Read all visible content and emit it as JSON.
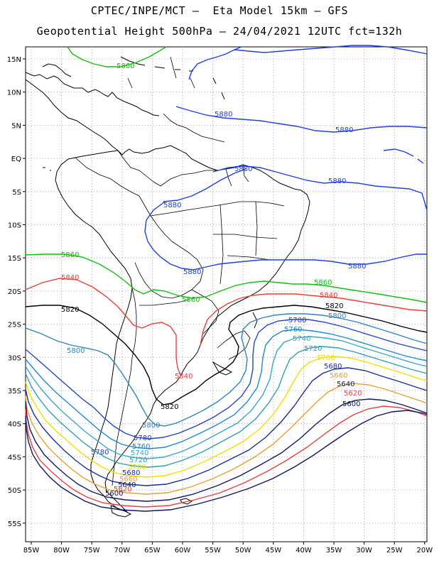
{
  "title_line1": "CPTEC/INPE/MCT –  Eta Model 15km – GFS",
  "title_line2": "Geopotential Height 500hPa – 24/04/2021 12UTC fct=132h",
  "lat_labels": [
    "15N",
    "10N",
    "5N",
    "EQ",
    "5S",
    "10S",
    "15S",
    "20S",
    "25S",
    "30S",
    "35S",
    "40S",
    "45S",
    "50S",
    "55S"
  ],
  "lon_labels": [
    "85W",
    "80W",
    "75W",
    "70W",
    "65W",
    "60W",
    "55W",
    "50W",
    "45W",
    "40W",
    "35W",
    "30W",
    "25W",
    "20W"
  ],
  "colors": {
    "5880": "#1f3fe0",
    "5860": "#10c010",
    "5840": "#e8403a",
    "5820": "#000000",
    "5800": "#2f86b8",
    "5780": "#2244cc",
    "5760": "#1e88d8",
    "5740": "#3aa6c8",
    "5720": "#2fa0b0",
    "5700": "#f0e000",
    "5680": "#1c2c9c",
    "5660": "#e8a030",
    "5640": "#101860",
    "5620": "#e84040",
    "5600": "#101860"
  },
  "contour_labels": {
    "l5860_a": "5860",
    "l5880_a": "5880",
    "l5880_b": "5880",
    "l5880_c": "5880",
    "l5880_d": "5880",
    "l5880_e": "5880",
    "l5880_f": "5880",
    "l5880_g": "5880",
    "l5860_b": "5860",
    "l5860_c": "5860",
    "l5860_d": "5860",
    "l5840_a": "5840",
    "l5840_b": "5840",
    "l5840_c": "5840",
    "l5820_a": "5820",
    "l5820_b": "5820",
    "l5820_c": "5820",
    "l5800_a": "5800",
    "l5800_b": "5800",
    "l5800_c": "5800",
    "l5780_a": "5780",
    "l5780_b": "5780",
    "l5780_c": "5780",
    "l5760_a": "5760",
    "l5760_b": "5760",
    "l5740_a": "5740",
    "l5740_b": "5740",
    "l5720_a": "5720",
    "l5720_b": "5720",
    "l5700_a": "5700",
    "l5700_b": "5700",
    "l5680_a": "5680",
    "l5680_b": "5680",
    "l5660_a": "5660",
    "l5660_b": "5660",
    "l5640_a": "5640",
    "l5640_b": "5640",
    "l5620_a": "5620",
    "l5620_b": "5620",
    "l5600_a": "5600",
    "l5600_b": "5600"
  }
}
